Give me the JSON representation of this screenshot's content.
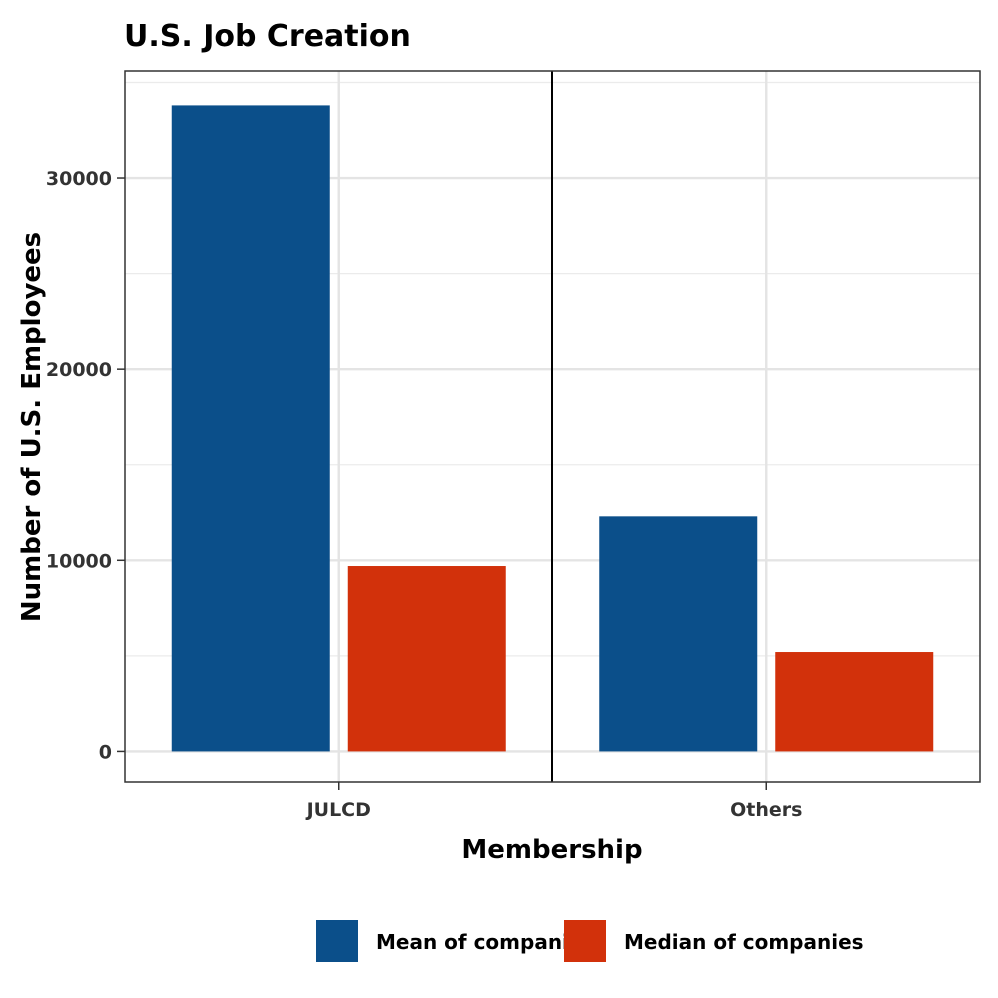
{
  "chart_data": {
    "type": "bar",
    "title": "U.S. Job Creation",
    "xlabel": "Membership",
    "ylabel": "Number of U.S. Employees",
    "categories": [
      "JULCD",
      "Others"
    ],
    "series": [
      {
        "name": "Mean of companies",
        "values": [
          33800,
          12300
        ],
        "color": "#0b4f8a"
      },
      {
        "name": "Median of companies",
        "values": [
          9700,
          5200
        ],
        "color": "#d2310b"
      }
    ],
    "y_ticks": [
      "0",
      "10000",
      "20000",
      "30000"
    ],
    "ylim": [
      -1600,
      35600
    ],
    "legend_position": "bottom",
    "grid": true
  }
}
